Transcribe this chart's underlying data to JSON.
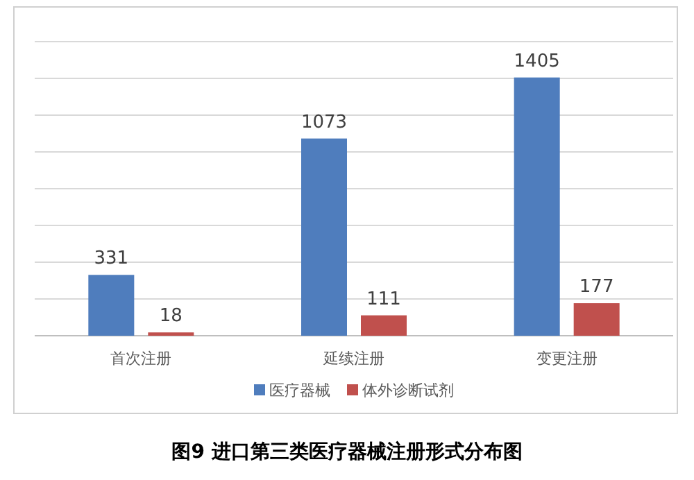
{
  "chart_data": {
    "type": "bar",
    "title": "图9 进口第三类医疗器械注册形式分布图",
    "categories": [
      "首次注册",
      "延续注册",
      "变更注册"
    ],
    "series": [
      {
        "name": "医疗器械",
        "color": "#4f7dbd",
        "values": [
          331,
          1073,
          1405
        ]
      },
      {
        "name": "体外诊断试剂",
        "color": "#c0504d",
        "values": [
          18,
          111,
          177
        ]
      }
    ],
    "ylim": [
      0,
      1600
    ],
    "yticks": [
      {
        "value": 0,
        "label": null
      },
      {
        "value": 200,
        "label": null
      },
      {
        "value": 400,
        "label": null
      },
      {
        "value": 600,
        "label": null
      },
      {
        "value": 800,
        "label": null
      },
      {
        "value": 1000,
        "label": null
      },
      {
        "value": 1200,
        "label": null
      },
      {
        "value": 1400,
        "label": null
      },
      {
        "value": 1600,
        "label": null
      }
    ],
    "tick_labels": "x",
    "grid": "y",
    "legend": "bottom",
    "data_labels": true
  }
}
